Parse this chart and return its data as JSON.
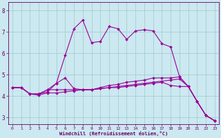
{
  "xlabel": "Windchill (Refroidissement éolien,°C)",
  "bg_color": "#cce8f0",
  "line_color": "#990099",
  "grid_color": "#99cccc",
  "axis_color": "#660066",
  "text_color": "#660066",
  "xlim": [
    -0.5,
    23.5
  ],
  "ylim": [
    2.7,
    8.4
  ],
  "yticks": [
    3,
    4,
    5,
    6,
    7,
    8
  ],
  "xticks": [
    0,
    1,
    2,
    3,
    4,
    5,
    6,
    7,
    8,
    9,
    10,
    11,
    12,
    13,
    14,
    15,
    16,
    17,
    18,
    19,
    20,
    21,
    22,
    23
  ],
  "series": [
    [
      4.4,
      4.4,
      4.1,
      4.05,
      4.15,
      4.15,
      4.2,
      4.25,
      4.3,
      4.3,
      4.35,
      4.4,
      4.4,
      4.45,
      4.5,
      4.55,
      4.6,
      4.65,
      4.5,
      4.45,
      4.45,
      3.75,
      3.1,
      2.85
    ],
    [
      4.4,
      4.4,
      4.1,
      4.1,
      4.2,
      4.6,
      5.9,
      7.15,
      7.55,
      6.5,
      6.55,
      7.25,
      7.15,
      6.65,
      7.05,
      7.1,
      7.05,
      6.45,
      6.3,
      4.9,
      4.45,
      3.75,
      3.1,
      2.85
    ],
    [
      4.4,
      4.4,
      4.1,
      4.1,
      4.3,
      4.6,
      4.85,
      4.35,
      4.3,
      4.3,
      4.4,
      4.5,
      4.55,
      4.65,
      4.7,
      4.75,
      4.85,
      4.85,
      4.85,
      4.9,
      4.45,
      3.75,
      3.1,
      2.85
    ],
    [
      4.4,
      4.4,
      4.1,
      4.1,
      4.3,
      4.3,
      4.3,
      4.3,
      4.3,
      4.3,
      4.35,
      4.4,
      4.45,
      4.5,
      4.55,
      4.6,
      4.65,
      4.7,
      4.75,
      4.8,
      4.45,
      3.75,
      3.1,
      2.85
    ]
  ]
}
